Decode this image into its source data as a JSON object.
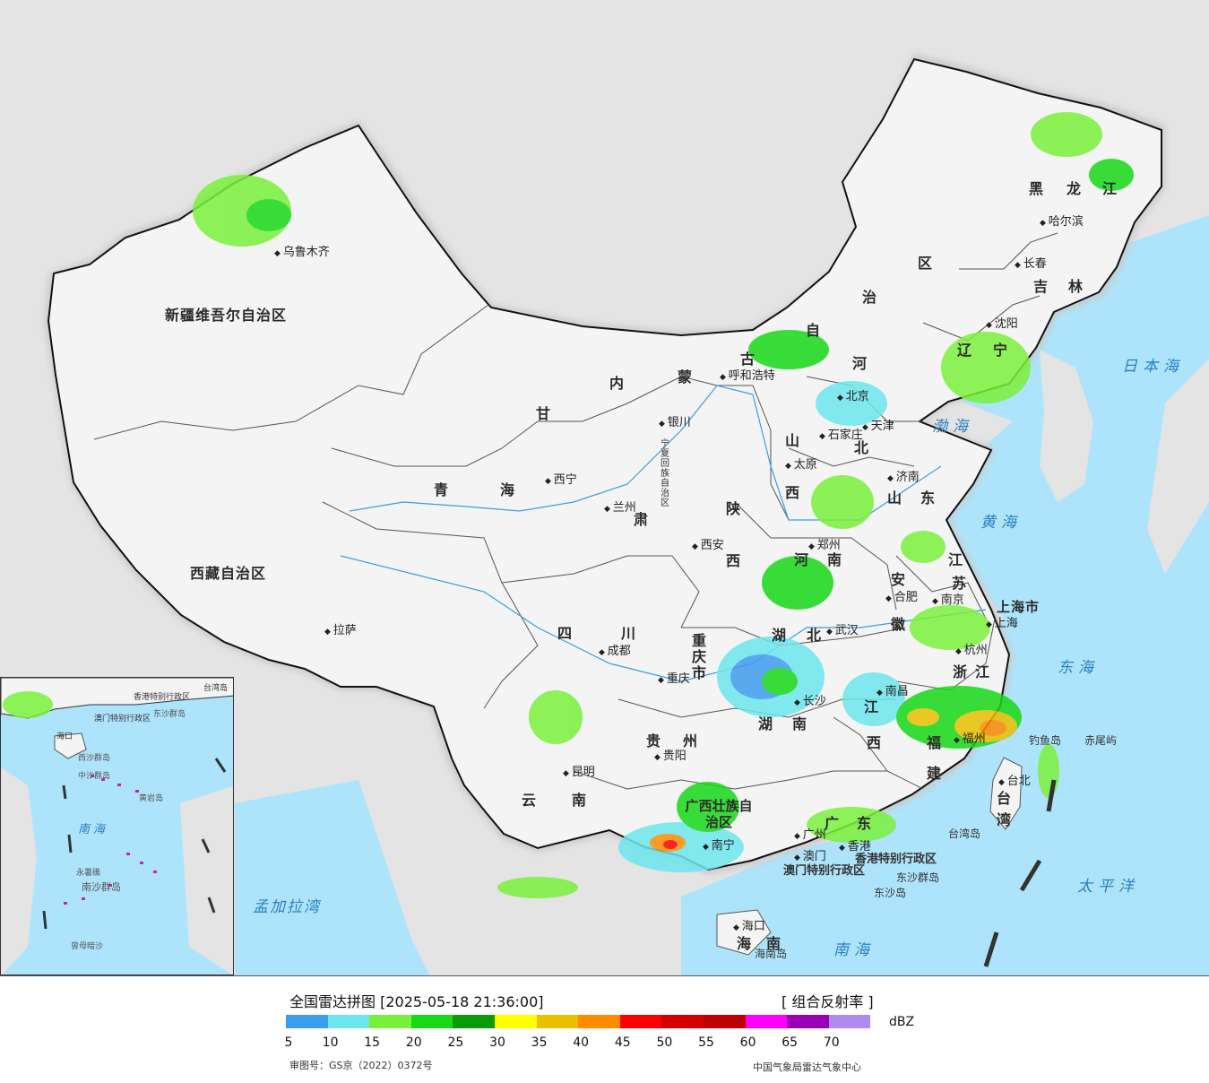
{
  "legend": {
    "title": "全国雷达拼图 [2025-05-18 21:36:00]",
    "product": "[ 组合反射率 ]",
    "unit": "dBZ",
    "colors": [
      "#3d9ded",
      "#6ee6ee",
      "#7af03c",
      "#18d818",
      "#0a9a0a",
      "#ffff00",
      "#e8c000",
      "#ff8c00",
      "#ff0000",
      "#d40000",
      "#be0000",
      "#ff00ff",
      "#9a00b4",
      "#ae8cee"
    ],
    "ticks": [
      "5",
      "10",
      "15",
      "20",
      "25",
      "30",
      "35",
      "40",
      "45",
      "50",
      "55",
      "60",
      "65",
      "70"
    ],
    "approval": "审图号：GS京（2022）0372号",
    "agency": "中国气象局雷达气象中心"
  },
  "provinces": [
    "新疆维吾尔自治区",
    "西藏自治区",
    "青",
    "海",
    "甘",
    "肃",
    "内",
    "蒙",
    "古",
    "自",
    "治",
    "区",
    "黑",
    "龙",
    "江",
    "吉",
    "林",
    "辽",
    "宁",
    "河",
    "北",
    "山",
    "西",
    "山",
    "东",
    "河",
    "南",
    "陕",
    "西",
    "宁夏回族自治区",
    "四",
    "川",
    "重庆市",
    "湖",
    "北",
    "湖",
    "南",
    "安",
    "徽",
    "江",
    "苏",
    "上海市",
    "浙",
    "江",
    "江",
    "西",
    "福",
    "建",
    "贵",
    "州",
    "云",
    "南",
    "广西壮族自治区",
    "广",
    "东",
    "海",
    "南",
    "台",
    "湾"
  ],
  "cities": [
    "乌鲁木齐",
    "拉萨",
    "西宁",
    "兰州",
    "银川",
    "呼和浩特",
    "北京",
    "天津",
    "石家庄",
    "太原",
    "济南",
    "郑州",
    "西安",
    "成都",
    "重庆",
    "贵阳",
    "昆明",
    "武汉",
    "长沙",
    "南昌",
    "合肥",
    "南京",
    "上海",
    "杭州",
    "福州",
    "台北",
    "南宁",
    "广州",
    "香港",
    "澳门",
    "海口",
    "哈尔滨",
    "长春",
    "沈阳"
  ],
  "seas": [
    "日本海",
    "渤海",
    "黄海",
    "东海",
    "太平洋",
    "南海",
    "孟加拉湾"
  ],
  "islands": [
    "钓鱼岛",
    "赤尾屿",
    "台湾岛",
    "东沙群岛",
    "东沙岛",
    "海南岛"
  ],
  "sars": [
    "香港特别行政区",
    "澳门特别行政区"
  ],
  "inset": {
    "labels": [
      "南海",
      "中沙群岛",
      "永暑礁",
      "南沙群岛",
      "曾母暗沙",
      "香港特别行政区",
      "澳门特别行政区",
      "东沙群岛",
      "西沙群岛",
      "黄岩岛",
      "海口",
      "台湾岛"
    ]
  }
}
